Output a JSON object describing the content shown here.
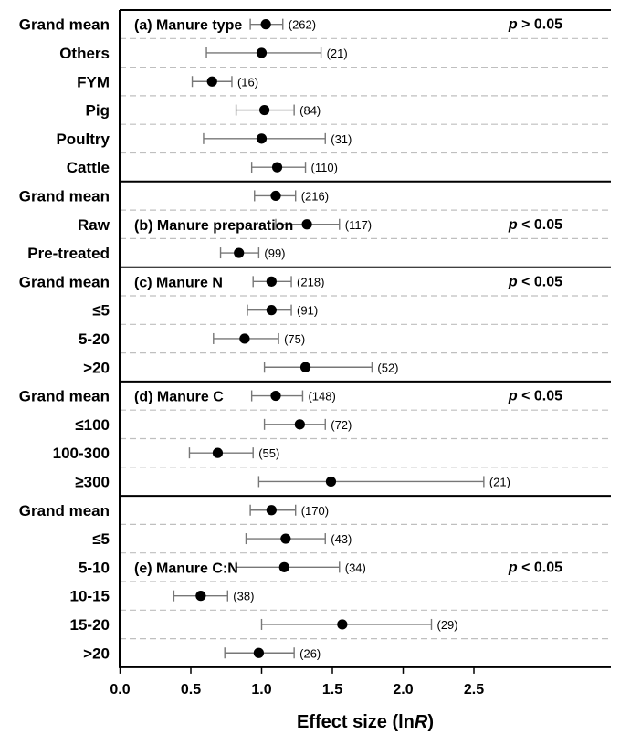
{
  "chart_data": {
    "type": "forest",
    "xlabel_main": "Effect size (ln",
    "xlabel_italic": "R",
    "xlabel_close": ")",
    "xlim": [
      0,
      2.8
    ],
    "xticks": [
      0.0,
      0.5,
      1.0,
      1.5,
      2.0,
      2.5
    ],
    "xtick_labels": [
      "0.0",
      "0.5",
      "1.0",
      "1.5",
      "2.0",
      "2.5"
    ],
    "grid": "dashed separators between rows",
    "panels": [
      {
        "title": "(a) Manure type",
        "title_row": 0,
        "sig_p": "p",
        "sig_rest": " > 0.05",
        "rows": [
          {
            "label": "Grand mean",
            "mean": 1.03,
            "lo": 0.92,
            "hi": 1.15,
            "n": "(262)"
          },
          {
            "label": "Others",
            "mean": 1.0,
            "lo": 0.61,
            "hi": 1.42,
            "n": "(21)"
          },
          {
            "label": "FYM",
            "mean": 0.65,
            "lo": 0.51,
            "hi": 0.79,
            "n": "(16)"
          },
          {
            "label": "Pig",
            "mean": 1.02,
            "lo": 0.82,
            "hi": 1.23,
            "n": "(84)"
          },
          {
            "label": "Poultry",
            "mean": 1.0,
            "lo": 0.59,
            "hi": 1.45,
            "n": "(31)"
          },
          {
            "label": "Cattle",
            "mean": 1.11,
            "lo": 0.93,
            "hi": 1.31,
            "n": "(110)"
          }
        ]
      },
      {
        "title": "(b) Manure preparation",
        "title_row": 1,
        "sig_p": "p",
        "sig_rest": " < 0.05",
        "rows": [
          {
            "label": "Grand mean",
            "mean": 1.1,
            "lo": 0.95,
            "hi": 1.24,
            "n": "(216)"
          },
          {
            "label": "Raw",
            "mean": 1.32,
            "lo": 1.1,
            "hi": 1.55,
            "n": "(117)"
          },
          {
            "label": "Pre-treated",
            "mean": 0.84,
            "lo": 0.71,
            "hi": 0.98,
            "n": "(99)"
          }
        ]
      },
      {
        "title": "(c) Manure N",
        "title_row": 0,
        "sig_p": "p",
        "sig_rest": " < 0.05",
        "rows": [
          {
            "label": "Grand mean",
            "mean": 1.07,
            "lo": 0.94,
            "hi": 1.21,
            "n": "(218)"
          },
          {
            "label": "≤5",
            "mean": 1.07,
            "lo": 0.9,
            "hi": 1.21,
            "n": "(91)"
          },
          {
            "label": "5-20",
            "mean": 0.88,
            "lo": 0.66,
            "hi": 1.12,
            "n": "(75)"
          },
          {
            "label": ">20",
            "mean": 1.31,
            "lo": 1.02,
            "hi": 1.78,
            "n": "(52)"
          }
        ]
      },
      {
        "title": "(d) Manure C",
        "title_row": 0,
        "sig_p": "p",
        "sig_rest": " < 0.05",
        "rows": [
          {
            "label": "Grand mean",
            "mean": 1.1,
            "lo": 0.93,
            "hi": 1.29,
            "n": "(148)"
          },
          {
            "label": "≤100",
            "mean": 1.27,
            "lo": 1.02,
            "hi": 1.45,
            "n": "(72)"
          },
          {
            "label": "100-300",
            "mean": 0.69,
            "lo": 0.49,
            "hi": 0.94,
            "n": "(55)"
          },
          {
            "label": "≥300",
            "mean": 1.49,
            "lo": 0.98,
            "hi": 2.57,
            "n": "(21)"
          }
        ]
      },
      {
        "title": "(e) Manure C:N",
        "title_row": 2,
        "sig_p": "p",
        "sig_rest": " < 0.05",
        "rows": [
          {
            "label": "Grand mean",
            "mean": 1.07,
            "lo": 0.92,
            "hi": 1.24,
            "n": "(170)"
          },
          {
            "label": "≤5",
            "mean": 1.17,
            "lo": 0.89,
            "hi": 1.45,
            "n": "(43)"
          },
          {
            "label": "5-10",
            "mean": 1.16,
            "lo": 0.82,
            "hi": 1.55,
            "n": "(34)"
          },
          {
            "label": "10-15",
            "mean": 0.57,
            "lo": 0.38,
            "hi": 0.76,
            "n": "(38)"
          },
          {
            "label": "15-20",
            "mean": 1.57,
            "lo": 1.0,
            "hi": 2.2,
            "n": "(29)"
          },
          {
            "label": ">20",
            "mean": 0.98,
            "lo": 0.74,
            "hi": 1.23,
            "n": "(26)"
          }
        ]
      }
    ]
  }
}
